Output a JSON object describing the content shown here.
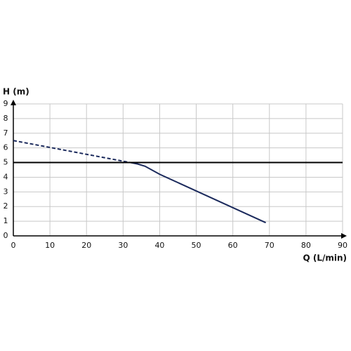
{
  "chart_data": {
    "type": "line",
    "y_label": "H (m)",
    "x_label": "Q (L/min)",
    "xlim": [
      0,
      90
    ],
    "xticks": [
      0,
      10,
      20,
      30,
      40,
      50,
      60,
      70,
      80,
      90
    ],
    "ylim": [
      0,
      9
    ],
    "yticks": [
      0,
      1,
      2,
      3,
      4,
      5,
      6,
      7,
      8,
      9
    ],
    "grid": true,
    "series": [
      {
        "color": "#1b2a5c",
        "dash": true,
        "x": [
          0,
          32
        ],
        "values": [
          6.5,
          5.0
        ]
      },
      {
        "color": "#1b2a5c",
        "dash": false,
        "x": [
          32,
          34,
          36,
          40,
          69
        ],
        "values": [
          5.0,
          4.9,
          4.75,
          4.2,
          0.9
        ]
      },
      {
        "color": "#000000",
        "dash": false,
        "x": [
          0,
          90
        ],
        "values": [
          5,
          5
        ]
      }
    ]
  }
}
